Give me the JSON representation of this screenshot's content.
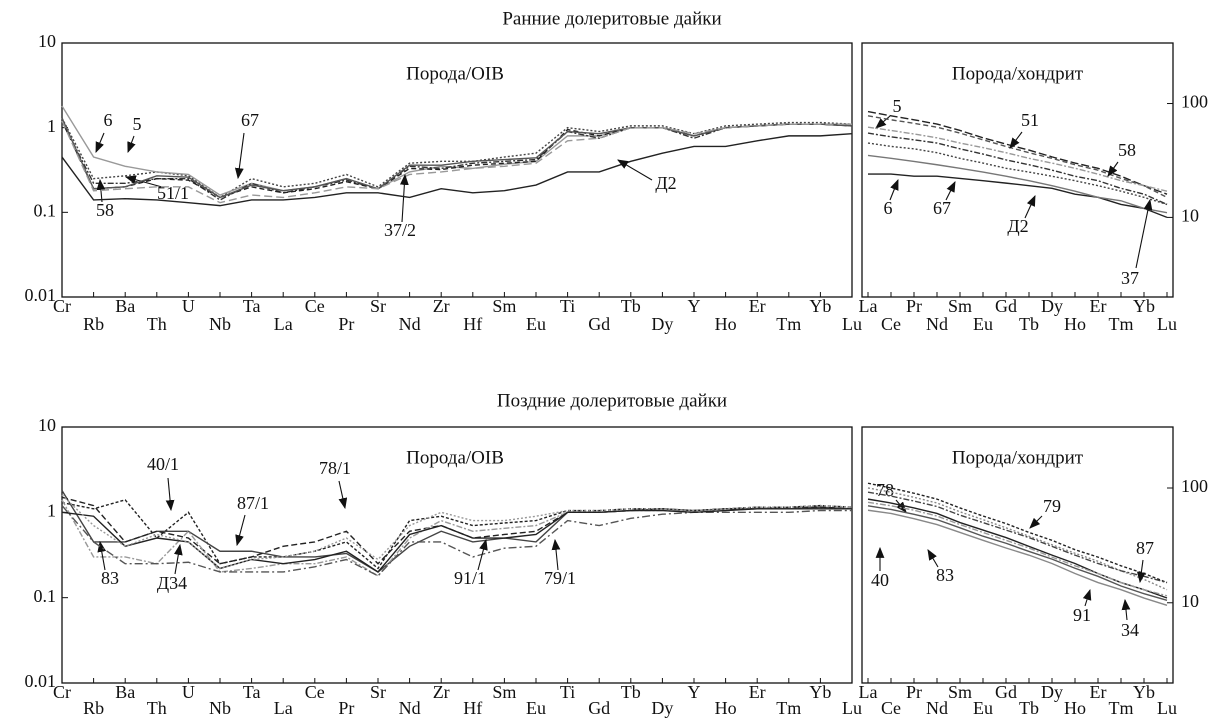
{
  "chart_data": [
    {
      "type": "line",
      "title": "Ранние долеритовые дайки",
      "subtitle": "Порода/OIB",
      "log_scale": true,
      "y_axis_side": "left",
      "categories": [
        "Cr",
        "Rb",
        "Ba",
        "Th",
        "U",
        "Nb",
        "Ta",
        "La",
        "Ce",
        "Pr",
        "Sr",
        "Nd",
        "Zr",
        "Hf",
        "Sm",
        "Eu",
        "Ti",
        "Gd",
        "Tb",
        "Dy",
        "Y",
        "Ho",
        "Er",
        "Tm",
        "Yb",
        "Lu"
      ],
      "ylim": [
        0.01,
        10
      ],
      "yticks": [
        0.01,
        0.1,
        1,
        10
      ],
      "series": [
        {
          "name": "6",
          "color": "#444",
          "dash": "2,2",
          "values": [
            1.3,
            0.25,
            0.27,
            0.3,
            0.27,
            0.15,
            0.25,
            0.2,
            0.22,
            0.28,
            0.2,
            0.38,
            0.4,
            0.4,
            0.45,
            0.5,
            1.0,
            0.9,
            1.05,
            1.05,
            0.85,
            1.05,
            1.1,
            1.15,
            1.15,
            1.1
          ]
        },
        {
          "name": "5",
          "color": "#999",
          "dash": "",
          "values": [
            1.8,
            0.45,
            0.35,
            0.3,
            0.28,
            0.16,
            0.22,
            0.18,
            0.2,
            0.25,
            0.19,
            0.3,
            0.35,
            0.33,
            0.37,
            0.4,
            0.8,
            0.8,
            1.0,
            1.0,
            0.8,
            1.0,
            1.05,
            1.1,
            1.1,
            1.1
          ]
        },
        {
          "name": "67",
          "color": "#333",
          "dash": "6,2,2,2",
          "values": [
            1.2,
            0.22,
            0.22,
            0.25,
            0.25,
            0.14,
            0.22,
            0.17,
            0.2,
            0.24,
            0.19,
            0.35,
            0.33,
            0.38,
            0.4,
            0.42,
            0.9,
            0.75,
            1.0,
            1.0,
            0.75,
            1.0,
            1.05,
            1.1,
            1.1,
            1.05
          ]
        },
        {
          "name": "51/1",
          "color": "#222",
          "dash": "5,3",
          "values": [
            1.2,
            0.19,
            0.2,
            0.25,
            0.24,
            0.15,
            0.2,
            0.17,
            0.19,
            0.23,
            0.19,
            0.33,
            0.32,
            0.36,
            0.38,
            0.4,
            0.95,
            0.8,
            1.0,
            1.0,
            0.8,
            1.0,
            1.05,
            1.1,
            1.1,
            1.05
          ]
        },
        {
          "name": "58",
          "color": "#555",
          "dash": "",
          "values": [
            1.3,
            0.19,
            0.2,
            0.27,
            0.26,
            0.15,
            0.21,
            0.18,
            0.2,
            0.25,
            0.19,
            0.36,
            0.36,
            0.4,
            0.42,
            0.44,
            0.9,
            0.85,
            1.0,
            1.0,
            0.8,
            1.0,
            1.05,
            1.1,
            1.1,
            1.05
          ]
        },
        {
          "name": "37/2",
          "color": "#999",
          "dash": "8,4",
          "values": [
            1.2,
            0.18,
            0.19,
            0.2,
            0.2,
            0.13,
            0.16,
            0.15,
            0.17,
            0.2,
            0.19,
            0.28,
            0.3,
            0.33,
            0.35,
            0.38,
            0.7,
            0.75,
            1.0,
            1.0,
            0.85,
            1.0,
            1.05,
            1.1,
            1.1,
            1.1
          ]
        },
        {
          "name": "Д2",
          "color": "#222",
          "dash": "",
          "values": [
            0.45,
            0.14,
            0.145,
            0.14,
            0.13,
            0.12,
            0.14,
            0.14,
            0.15,
            0.17,
            0.17,
            0.15,
            0.19,
            0.17,
            0.18,
            0.21,
            0.3,
            0.3,
            0.4,
            0.5,
            0.6,
            0.6,
            0.7,
            0.8,
            0.8,
            0.85
          ]
        }
      ]
    },
    {
      "type": "line",
      "subtitle": "Порода/хондрит",
      "log_scale": true,
      "y_axis_side": "right",
      "categories": [
        "La",
        "Ce",
        "Pr",
        "Nd",
        "Sm",
        "Eu",
        "Gd",
        "Tb",
        "Dy",
        "Ho",
        "Er",
        "Tm",
        "Yb",
        "Lu"
      ],
      "ylim": [
        2,
        340
      ],
      "yticks": [
        10,
        100
      ],
      "series": [
        {
          "name": "5",
          "color": "#222",
          "dash": "8,3",
          "values": [
            85,
            78,
            72,
            66,
            58,
            50,
            44,
            39,
            34,
            30,
            27,
            23,
            19,
            16
          ]
        },
        {
          "name": "51",
          "color": "#555",
          "dash": "5,3",
          "values": [
            78,
            72,
            67,
            62,
            55,
            48,
            42,
            37,
            33,
            29,
            26,
            22,
            19,
            15
          ]
        },
        {
          "name": "58",
          "color": "#999",
          "dash": "6,2,2,2",
          "values": [
            62,
            58,
            54,
            50,
            45,
            41,
            37,
            33,
            30,
            27,
            24,
            21,
            19,
            17
          ]
        },
        {
          "name": "6",
          "color": "#444",
          "dash": "2,2",
          "values": [
            45,
            42,
            40,
            37,
            33,
            30,
            27,
            25,
            23,
            21,
            19,
            17,
            15,
            13
          ]
        },
        {
          "name": "67",
          "color": "#333",
          "dash": "6,2,2,2",
          "values": [
            55,
            51,
            48,
            45,
            40,
            36,
            32,
            29,
            26,
            23,
            21,
            18,
            16,
            13
          ]
        },
        {
          "name": "Д2",
          "color": "#222",
          "dash": "",
          "values": [
            24,
            24,
            23,
            23,
            22,
            21,
            20,
            19,
            18,
            16,
            15,
            13,
            12,
            10
          ]
        },
        {
          "name": "37",
          "color": "#777",
          "dash": "",
          "values": [
            35,
            33,
            31,
            29,
            27,
            25,
            23,
            21,
            19,
            17,
            15,
            14,
            12,
            11
          ]
        }
      ]
    },
    {
      "type": "line",
      "title": "Поздние долеритовые дайки",
      "subtitle": "Порода/OIB",
      "log_scale": true,
      "y_axis_side": "left",
      "categories": [
        "Cr",
        "Rb",
        "Ba",
        "Th",
        "U",
        "Nb",
        "Ta",
        "La",
        "Ce",
        "Pr",
        "Sr",
        "Nd",
        "Zr",
        "Hf",
        "Sm",
        "Eu",
        "Ti",
        "Gd",
        "Tb",
        "Dy",
        "Y",
        "Ho",
        "Er",
        "Tm",
        "Yb",
        "Lu"
      ],
      "ylim": [
        0.01,
        10
      ],
      "yticks": [
        0.01,
        0.1,
        1,
        10
      ],
      "series": [
        {
          "name": "40/1",
          "color": "#222",
          "dash": "3,2",
          "values": [
            1.3,
            1.1,
            1.4,
            0.5,
            1.0,
            0.25,
            0.3,
            0.3,
            0.35,
            0.45,
            0.22,
            0.8,
            0.9,
            0.7,
            0.75,
            0.8,
            1.05,
            1.05,
            1.1,
            1.1,
            1.05,
            1.1,
            1.15,
            1.15,
            1.2,
            1.15
          ]
        },
        {
          "name": "87/1",
          "color": "#444",
          "dash": "",
          "values": [
            1.8,
            0.45,
            0.45,
            0.6,
            0.6,
            0.35,
            0.35,
            0.3,
            0.3,
            0.33,
            0.2,
            0.4,
            0.6,
            0.45,
            0.5,
            0.45,
            1.0,
            1.0,
            1.05,
            1.1,
            1.05,
            1.1,
            1.1,
            1.1,
            1.15,
            1.1
          ]
        },
        {
          "name": "78/1",
          "color": "#222",
          "dash": "6,3",
          "values": [
            1.5,
            1.2,
            0.45,
            0.6,
            0.5,
            0.25,
            0.3,
            0.4,
            0.45,
            0.6,
            0.25,
            0.6,
            0.7,
            0.5,
            0.55,
            0.6,
            1.0,
            1.0,
            1.05,
            1.1,
            1.05,
            1.1,
            1.1,
            1.15,
            1.15,
            1.1
          ]
        },
        {
          "name": "83",
          "color": "#999",
          "dash": "6,2,2,2",
          "values": [
            1.4,
            0.3,
            0.3,
            0.25,
            0.6,
            0.2,
            0.22,
            0.25,
            0.25,
            0.3,
            0.18,
            0.5,
            0.8,
            0.6,
            0.65,
            0.7,
            1.0,
            1.0,
            1.05,
            1.05,
            1.0,
            1.05,
            1.1,
            1.1,
            1.1,
            1.1
          ]
        },
        {
          "name": "Д34",
          "color": "#555",
          "dash": "8,3,2,3",
          "values": [
            1.2,
            0.45,
            0.25,
            0.25,
            0.26,
            0.2,
            0.2,
            0.2,
            0.23,
            0.28,
            0.18,
            0.45,
            0.45,
            0.3,
            0.38,
            0.4,
            0.8,
            0.7,
            0.85,
            0.95,
            1.0,
            1.0,
            1.0,
            1.0,
            1.05,
            1.05
          ]
        },
        {
          "name": "91/1",
          "color": "#222",
          "dash": "",
          "values": [
            1.0,
            0.9,
            0.4,
            0.5,
            0.45,
            0.22,
            0.28,
            0.25,
            0.28,
            0.35,
            0.2,
            0.55,
            0.7,
            0.5,
            0.5,
            0.55,
            1.0,
            1.0,
            1.05,
            1.05,
            1.0,
            1.05,
            1.1,
            1.1,
            1.1,
            1.1
          ]
        },
        {
          "name": "79/1",
          "color": "#999",
          "dash": "2,2",
          "values": [
            1.6,
            0.7,
            0.4,
            0.55,
            0.45,
            0.22,
            0.28,
            0.3,
            0.35,
            0.5,
            0.28,
            0.7,
            1.0,
            0.8,
            0.8,
            0.9,
            1.05,
            1.05,
            1.1,
            1.1,
            1.05,
            1.1,
            1.15,
            1.15,
            1.2,
            1.15
          ]
        }
      ]
    },
    {
      "type": "line",
      "subtitle": "Порода/хондрит",
      "log_scale": true,
      "y_axis_side": "right",
      "categories": [
        "La",
        "Ce",
        "Pr",
        "Nd",
        "Sm",
        "Eu",
        "Gd",
        "Tb",
        "Dy",
        "Ho",
        "Er",
        "Tm",
        "Yb",
        "Lu"
      ],
      "ylim": [
        2,
        340
      ],
      "yticks": [
        10,
        100
      ],
      "series": [
        {
          "name": "78",
          "color": "#222",
          "dash": "3,2",
          "values": [
            110,
            100,
            90,
            80,
            67,
            57,
            49,
            41,
            35,
            29,
            25,
            21,
            18,
            15
          ]
        },
        {
          "name": "79",
          "color": "#888",
          "dash": "2,2",
          "values": [
            100,
            92,
            83,
            74,
            62,
            53,
            45,
            38,
            32,
            27,
            23,
            19,
            16,
            13
          ]
        },
        {
          "name": "87",
          "color": "#444",
          "dash": "6,2,2,2",
          "values": [
            92,
            85,
            77,
            69,
            58,
            50,
            43,
            37,
            31,
            26,
            22,
            19,
            17,
            15
          ]
        },
        {
          "name": "40",
          "color": "#222",
          "dash": "",
          "values": [
            80,
            74,
            67,
            60,
            50,
            43,
            37,
            31,
            26,
            22,
            18,
            15,
            13,
            11
          ]
        },
        {
          "name": "83",
          "color": "#999",
          "dash": "6,2,2,2",
          "values": [
            75,
            70,
            64,
            57,
            48,
            41,
            35,
            30,
            25,
            21,
            18,
            15,
            13,
            11.5
          ]
        },
        {
          "name": "91",
          "color": "#555",
          "dash": "",
          "values": [
            70,
            65,
            59,
            53,
            45,
            38,
            33,
            28,
            24,
            20,
            17,
            14,
            12,
            10.5
          ]
        },
        {
          "name": "34",
          "color": "#888",
          "dash": "",
          "values": [
            64,
            60,
            54,
            48,
            41,
            35,
            30,
            26,
            22,
            18,
            15,
            13,
            11,
            9.5
          ]
        }
      ]
    }
  ]
}
